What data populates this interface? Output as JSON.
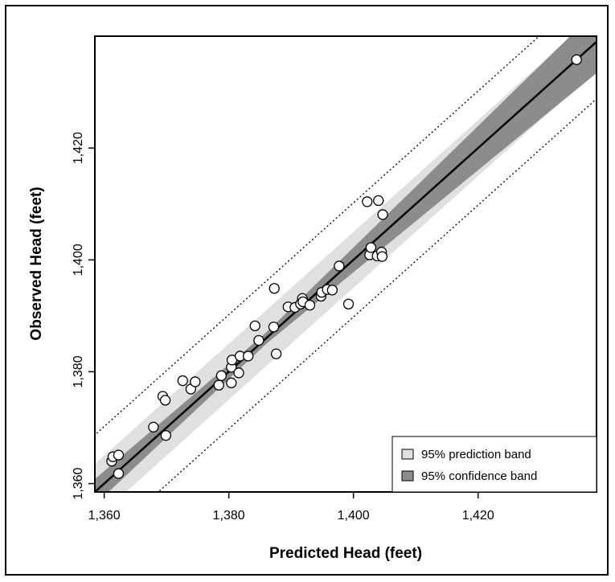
{
  "chart_data": {
    "type": "scatter",
    "xlabel": "Predicted Head (feet)",
    "ylabel": "Observed Head (feet)",
    "xlim": [
      1358.5,
      1439
    ],
    "ylim": [
      1358.5,
      1440
    ],
    "xticks": [
      {
        "value": 1360,
        "label": "1,360"
      },
      {
        "value": 1380,
        "label": "1,380"
      },
      {
        "value": 1400,
        "label": "1,400"
      },
      {
        "value": 1420,
        "label": "1,420"
      }
    ],
    "yticks": [
      {
        "value": 1360,
        "label": "1,360"
      },
      {
        "value": 1380,
        "label": "1,380"
      },
      {
        "value": 1400,
        "label": "1,400"
      },
      {
        "value": 1420,
        "label": "1,420"
      }
    ],
    "legend": {
      "position": "bottom-right",
      "items": [
        {
          "label": "95% prediction band",
          "color": "#e0e0e0"
        },
        {
          "label": "95% confidence band",
          "color": "#8c8c8c"
        }
      ]
    },
    "regression": {
      "intercept": 0,
      "slope": 1
    },
    "confidence_band": {
      "center": 1386,
      "width_at_center": 1.0,
      "width_at_low": 2.3,
      "width_at_high": 5.6
    },
    "prediction_band_halfwidth": 5.0,
    "prediction_limit_offset": 10.2,
    "points": [
      {
        "x": 1361.2,
        "y": 1364.0
      },
      {
        "x": 1361.4,
        "y": 1364.8
      },
      {
        "x": 1362.3,
        "y": 1365.1
      },
      {
        "x": 1362.3,
        "y": 1361.8
      },
      {
        "x": 1367.9,
        "y": 1370.1
      },
      {
        "x": 1369.4,
        "y": 1375.6
      },
      {
        "x": 1369.8,
        "y": 1374.9
      },
      {
        "x": 1369.9,
        "y": 1368.6
      },
      {
        "x": 1372.6,
        "y": 1378.4
      },
      {
        "x": 1373.9,
        "y": 1376.9
      },
      {
        "x": 1374.6,
        "y": 1378.2
      },
      {
        "x": 1378.4,
        "y": 1377.6
      },
      {
        "x": 1378.8,
        "y": 1379.3
      },
      {
        "x": 1380.4,
        "y": 1378.0
      },
      {
        "x": 1380.4,
        "y": 1380.8
      },
      {
        "x": 1380.5,
        "y": 1382.1
      },
      {
        "x": 1381.6,
        "y": 1379.8
      },
      {
        "x": 1381.8,
        "y": 1382.8
      },
      {
        "x": 1383.1,
        "y": 1382.8
      },
      {
        "x": 1384.2,
        "y": 1388.2
      },
      {
        "x": 1384.8,
        "y": 1385.6
      },
      {
        "x": 1387.2,
        "y": 1388.0
      },
      {
        "x": 1387.3,
        "y": 1394.9
      },
      {
        "x": 1387.6,
        "y": 1383.2
      },
      {
        "x": 1389.5,
        "y": 1391.6
      },
      {
        "x": 1390.6,
        "y": 1391.5
      },
      {
        "x": 1391.5,
        "y": 1392.1
      },
      {
        "x": 1391.8,
        "y": 1393.1
      },
      {
        "x": 1391.9,
        "y": 1392.5
      },
      {
        "x": 1393.0,
        "y": 1391.9
      },
      {
        "x": 1394.8,
        "y": 1393.5
      },
      {
        "x": 1394.9,
        "y": 1394.2
      },
      {
        "x": 1395.8,
        "y": 1394.7
      },
      {
        "x": 1396.6,
        "y": 1394.6
      },
      {
        "x": 1397.7,
        "y": 1398.9
      },
      {
        "x": 1399.2,
        "y": 1392.1
      },
      {
        "x": 1402.2,
        "y": 1410.4
      },
      {
        "x": 1402.6,
        "y": 1400.9
      },
      {
        "x": 1402.8,
        "y": 1402.2
      },
      {
        "x": 1403.8,
        "y": 1400.7
      },
      {
        "x": 1404.0,
        "y": 1410.6
      },
      {
        "x": 1404.5,
        "y": 1401.4
      },
      {
        "x": 1404.6,
        "y": 1400.6
      },
      {
        "x": 1404.7,
        "y": 1408.1
      },
      {
        "x": 1435.8,
        "y": 1435.8
      }
    ]
  }
}
